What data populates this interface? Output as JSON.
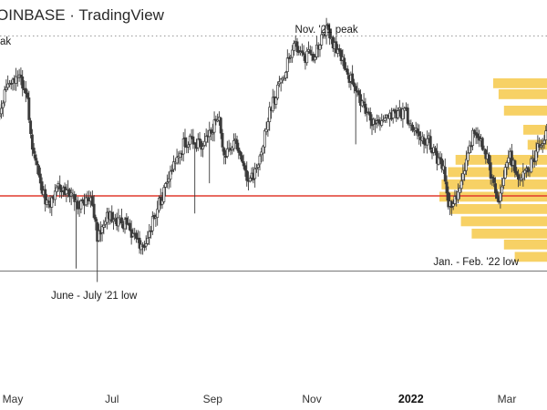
{
  "header": {
    "source": "OINBASE · TradingView"
  },
  "colors": {
    "candle": "#3a3a3a",
    "support_line": "#e03a2e",
    "volume_profile": "#f6c94a",
    "baseline": "#777777",
    "peak_line": "#9a9a9a"
  },
  "chart_data": {
    "type": "candlestick",
    "title": "",
    "xlabel": "",
    "ylabel": "",
    "x_ticks": [
      {
        "label": "May",
        "date": "2021-05-01",
        "emphasis": false
      },
      {
        "label": "Jul",
        "date": "2021-07-01",
        "emphasis": false
      },
      {
        "label": "Sep",
        "date": "2021-09-01",
        "emphasis": false
      },
      {
        "label": "Nov",
        "date": "2021-11-01",
        "emphasis": false
      },
      {
        "label": "2022",
        "date": "2022-01-01",
        "emphasis": true
      },
      {
        "label": "Mar",
        "date": "2022-03-01",
        "emphasis": false
      }
    ],
    "annotations": [
      {
        "name": "nov-peak-label",
        "text": "Nov. '21 peak",
        "date": "2021-11-10",
        "level": 1.05,
        "anchor": "above"
      },
      {
        "name": "peak-label-cut",
        "text": "ak",
        "date": "2021-04-10",
        "level": 0.96,
        "anchor": "left"
      },
      {
        "name": "june-july-low-label",
        "text": "June - July '21 low",
        "date": "2021-06-20",
        "level": 0.09,
        "anchor": "below"
      },
      {
        "name": "jan-feb-low-label",
        "text": "Jan. - Feb. '22 low",
        "date": "2022-02-10",
        "level": 0.25,
        "anchor": "below"
      }
    ],
    "horizontal_lines": [
      {
        "name": "support-line",
        "level": 0.37,
        "style": "solid",
        "color": "#e03a2e"
      },
      {
        "name": "peak-dotted-line",
        "level": 0.955,
        "style": "dotted",
        "color": "#9a9a9a"
      },
      {
        "name": "baseline",
        "level": 0.095,
        "style": "solid",
        "color": "#777777"
      }
    ],
    "y_range": [
      0.0,
      1.1
    ],
    "anchors": [
      [
        "2021-04-20",
        0.62
      ],
      [
        "2021-04-27",
        0.76
      ],
      [
        "2021-05-05",
        0.8
      ],
      [
        "2021-05-10",
        0.71
      ],
      [
        "2021-05-13",
        0.56
      ],
      [
        "2021-05-19",
        0.38
      ],
      [
        "2021-05-24",
        0.33
      ],
      [
        "2021-05-28",
        0.42
      ],
      [
        "2021-06-05",
        0.38
      ],
      [
        "2021-06-12",
        0.33
      ],
      [
        "2021-06-18",
        0.37
      ],
      [
        "2021-06-22",
        0.22
      ],
      [
        "2021-06-28",
        0.3
      ],
      [
        "2021-07-05",
        0.28
      ],
      [
        "2021-07-12",
        0.25
      ],
      [
        "2021-07-20",
        0.17
      ],
      [
        "2021-07-28",
        0.31
      ],
      [
        "2021-08-05",
        0.44
      ],
      [
        "2021-08-15",
        0.57
      ],
      [
        "2021-08-25",
        0.56
      ],
      [
        "2021-09-05",
        0.65
      ],
      [
        "2021-09-08",
        0.52
      ],
      [
        "2021-09-15",
        0.58
      ],
      [
        "2021-09-22",
        0.43
      ],
      [
        "2021-09-28",
        0.46
      ],
      [
        "2021-10-06",
        0.68
      ],
      [
        "2021-10-15",
        0.82
      ],
      [
        "2021-10-21",
        0.92
      ],
      [
        "2021-10-28",
        0.88
      ],
      [
        "2021-11-03",
        0.89
      ],
      [
        "2021-11-10",
        0.98
      ],
      [
        "2021-11-16",
        0.91
      ],
      [
        "2021-11-26",
        0.78
      ],
      [
        "2021-12-04",
        0.68
      ],
      [
        "2021-12-10",
        0.63
      ],
      [
        "2021-12-20",
        0.66
      ],
      [
        "2021-12-28",
        0.68
      ],
      [
        "2022-01-05",
        0.59
      ],
      [
        "2022-01-12",
        0.57
      ],
      [
        "2022-01-21",
        0.46
      ],
      [
        "2022-01-24",
        0.33
      ],
      [
        "2022-02-01",
        0.41
      ],
      [
        "2022-02-08",
        0.59
      ],
      [
        "2022-02-15",
        0.55
      ],
      [
        "2022-02-24",
        0.33
      ],
      [
        "2022-03-02",
        0.53
      ],
      [
        "2022-03-07",
        0.45
      ],
      [
        "2022-03-15",
        0.47
      ],
      [
        "2022-03-22",
        0.57
      ],
      [
        "2022-03-28",
        0.63
      ]
    ],
    "volume_profile": [
      {
        "level": 0.78,
        "length": 0.5
      },
      {
        "level": 0.74,
        "length": 0.45
      },
      {
        "level": 0.68,
        "length": 0.4
      },
      {
        "level": 0.61,
        "length": 0.22
      },
      {
        "level": 0.555,
        "length": 0.18
      },
      {
        "level": 0.5,
        "length": 0.85
      },
      {
        "level": 0.455,
        "length": 0.92
      },
      {
        "level": 0.41,
        "length": 0.98
      },
      {
        "level": 0.365,
        "length": 1.0
      },
      {
        "level": 0.32,
        "length": 0.9
      },
      {
        "level": 0.275,
        "length": 0.8
      },
      {
        "level": 0.23,
        "length": 0.7
      },
      {
        "level": 0.19,
        "length": 0.4
      },
      {
        "level": 0.145,
        "length": 0.3
      }
    ]
  }
}
